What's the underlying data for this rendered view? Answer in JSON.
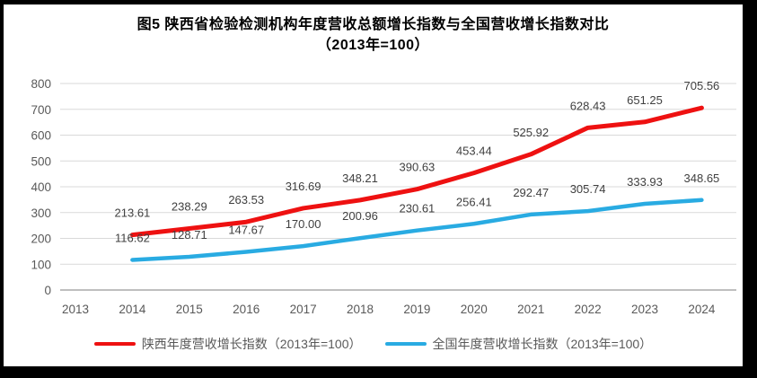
{
  "title": {
    "line1": "图5  陕西省检验检测机构年度营收总额增长指数与全国营收增长指数对比",
    "line2": "（2013年=100）"
  },
  "chart_data": {
    "type": "line",
    "categories": [
      "2013",
      "2014",
      "2015",
      "2016",
      "2017",
      "2018",
      "2019",
      "2020",
      "2021",
      "2022",
      "2023",
      "2024"
    ],
    "series": [
      {
        "name": "陕西年度营收增长指数（2013年=100）",
        "color": "#ee1111",
        "values": [
          null,
          213.61,
          238.29,
          263.53,
          316.69,
          348.21,
          390.63,
          453.44,
          525.92,
          628.43,
          651.25,
          705.56
        ]
      },
      {
        "name": "全国年度营收增长指数（2013年=100）",
        "color": "#29abe2",
        "values": [
          null,
          116.62,
          128.71,
          147.67,
          170.0,
          200.96,
          230.61,
          256.41,
          292.47,
          305.74,
          333.93,
          348.65
        ]
      }
    ],
    "ylim": [
      0,
      800
    ],
    "ytick_step": 100,
    "grid": "horizontal",
    "legend_position": "bottom",
    "data_labels": true,
    "label_decimals": 2
  },
  "colors": {
    "gridline": "#d9d9d9",
    "axis_line": "#bfbfbf",
    "tick_label": "#595959",
    "data_label": "#404040",
    "title_text": "#000000",
    "legend_text": "#595959",
    "frame_border": "#000000",
    "plot_background": "#ffffff"
  }
}
